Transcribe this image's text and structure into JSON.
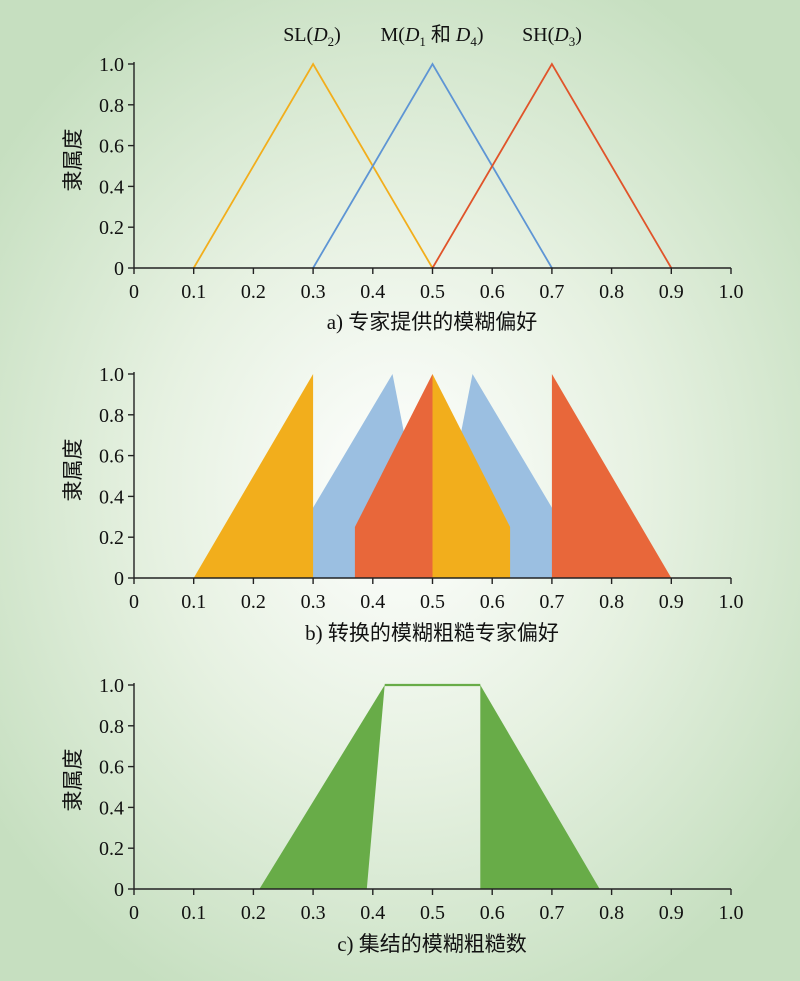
{
  "chart_data": [
    {
      "type": "line",
      "caption": "a) 专家提供的模糊偏好",
      "ylabel": "隶属度",
      "xlim": [
        0,
        1
      ],
      "ylim": [
        0,
        1
      ],
      "x_ticks": [
        "0",
        "0.1",
        "0.2",
        "0.3",
        "0.4",
        "0.5",
        "0.6",
        "0.7",
        "0.8",
        "0.9",
        "1.0"
      ],
      "y_ticks": [
        "0",
        "0.2",
        "0.4",
        "0.6",
        "0.8",
        "1.0"
      ],
      "series": [
        {
          "label": "SL(D2)",
          "color": "#f2ae1c",
          "points": [
            [
              0.1,
              0
            ],
            [
              0.3,
              1
            ],
            [
              0.5,
              0
            ]
          ]
        },
        {
          "label": "M(D1 和 D4)",
          "color": "#5e95d4",
          "points": [
            [
              0.3,
              0
            ],
            [
              0.5,
              1
            ],
            [
              0.7,
              0
            ]
          ]
        },
        {
          "label": "SH(D3)",
          "color": "#e0542a",
          "points": [
            [
              0.5,
              0
            ],
            [
              0.7,
              1
            ],
            [
              0.9,
              0
            ]
          ]
        }
      ]
    },
    {
      "type": "area",
      "caption": "b) 转换的模糊粗糙专家偏好",
      "ylabel": "隶属度",
      "xlim": [
        0,
        1
      ],
      "ylim": [
        0,
        1
      ],
      "x_ticks": [
        "0",
        "0.1",
        "0.2",
        "0.3",
        "0.4",
        "0.5",
        "0.6",
        "0.7",
        "0.8",
        "0.9",
        "1.0"
      ],
      "y_ticks": [
        "0",
        "0.2",
        "0.4",
        "0.6",
        "0.8",
        "1.0"
      ],
      "series": [
        {
          "color": "#9bbfe1",
          "points": [
            [
              0.23,
              0
            ],
            [
              0.433,
              1
            ],
            [
              0.5,
              0
            ]
          ]
        },
        {
          "color": "#9bbfe1",
          "points": [
            [
              0.5,
              0
            ],
            [
              0.567,
              1
            ],
            [
              0.77,
              0
            ]
          ]
        },
        {
          "color": "#e8673a",
          "points": [
            [
              0.37,
              0
            ],
            [
              0.37,
              0.25
            ],
            [
              0.5,
              1
            ],
            [
              0.5,
              0
            ]
          ]
        },
        {
          "color": "#e8673a",
          "points": [
            [
              0.7,
              0
            ],
            [
              0.7,
              1
            ],
            [
              0.9,
              0
            ]
          ]
        },
        {
          "color": "#f2ae1c",
          "points": [
            [
              0.1,
              0
            ],
            [
              0.3,
              1
            ],
            [
              0.3,
              0
            ]
          ]
        },
        {
          "color": "#f2ae1c",
          "points": [
            [
              0.5,
              0
            ],
            [
              0.5,
              1
            ],
            [
              0.63,
              0.25
            ],
            [
              0.63,
              0
            ]
          ]
        }
      ]
    },
    {
      "type": "area",
      "caption": "c) 集结的模糊粗糙数",
      "ylabel": "隶属度",
      "xlim": [
        0,
        1
      ],
      "ylim": [
        0,
        1
      ],
      "x_ticks": [
        "0",
        "0.1",
        "0.2",
        "0.3",
        "0.4",
        "0.5",
        "0.6",
        "0.7",
        "0.8",
        "0.9",
        "1.0"
      ],
      "y_ticks": [
        "0",
        "0.2",
        "0.4",
        "0.6",
        "0.8",
        "1.0"
      ],
      "series": [
        {
          "color": "#68ac48",
          "points": [
            [
              0.21,
              0
            ],
            [
              0.42,
              1
            ],
            [
              0.39,
              0
            ]
          ]
        },
        {
          "color": "#68ac48",
          "points": [
            [
              0.58,
              0
            ],
            [
              0.58,
              1
            ],
            [
              0.78,
              0
            ],
            [
              0.61,
              0
            ]
          ]
        }
      ],
      "upper_line": {
        "color": "#68ac48",
        "points": [
          [
            0.42,
            1
          ],
          [
            0.58,
            1
          ]
        ]
      }
    }
  ]
}
